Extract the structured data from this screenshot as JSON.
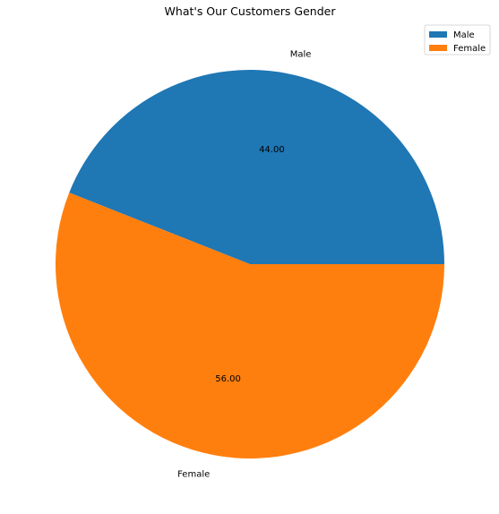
{
  "chart_data": {
    "type": "pie",
    "title": "What's Our Customers Gender",
    "categories": [
      "Male",
      "Female"
    ],
    "values": [
      44.0,
      56.0
    ],
    "percent_labels": [
      "44.00",
      "56.00"
    ],
    "colors": [
      "#1f77b4",
      "#ff7f0e"
    ],
    "legend": {
      "placement": "top-right",
      "entries": [
        "Male",
        "Female"
      ]
    },
    "start_angle_deg": 0,
    "direction": "counterclockwise"
  }
}
